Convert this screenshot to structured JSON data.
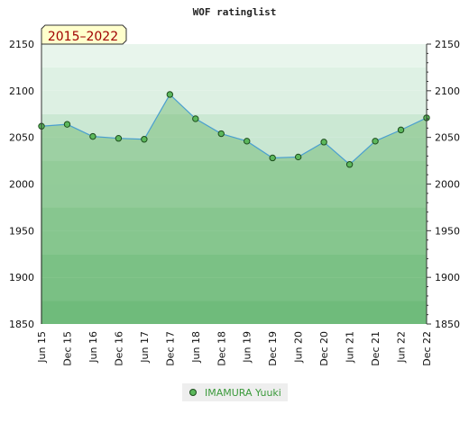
{
  "chart_data": {
    "type": "area",
    "title": "WOF ratinglist",
    "badge": "2015–2022",
    "ylim": [
      1850,
      2150
    ],
    "yticks": [
      1850,
      1900,
      1950,
      2000,
      2050,
      2100,
      2150
    ],
    "categories": [
      "Jun 15",
      "Dec 15",
      "Jun 16",
      "Dec 16",
      "Jun 17",
      "Dec 17",
      "Jun 18",
      "Dec 18",
      "Jun 19",
      "Dec 19",
      "Jun 20",
      "Dec 20",
      "Jun 21",
      "Dec 21",
      "Jun 22",
      "Dec 22"
    ],
    "series": [
      {
        "name": "IMAMURA Yuuki",
        "values": [
          2062,
          2064,
          2051,
          2049,
          2048,
          2096,
          2070,
          2054,
          2046,
          2028,
          2029,
          2045,
          2021,
          2046,
          2058,
          2071
        ]
      }
    ],
    "grid": true,
    "legend_position": "bottom"
  },
  "colors": {
    "line": "#4a9fd0",
    "area_fill": "#5cae5c",
    "marker_fill": "#5cb85c",
    "marker_stroke": "#1d4d1d",
    "band_low": "#7cc48f",
    "band_high": "#e8f5ec",
    "badge_bg": "#ffffcc",
    "badge_text": "#a00000",
    "legend_text": "#3b9a3b"
  }
}
